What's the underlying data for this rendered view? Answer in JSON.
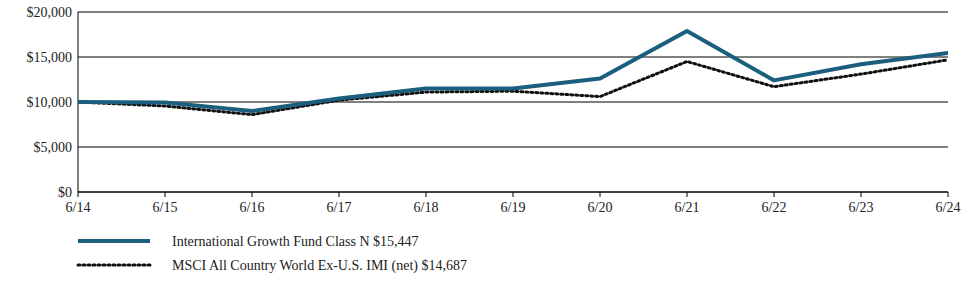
{
  "chart_data": {
    "type": "line",
    "categories": [
      "6/14",
      "6/15",
      "6/16",
      "6/17",
      "6/18",
      "6/19",
      "6/20",
      "6/21",
      "6/22",
      "6/23",
      "6/24"
    ],
    "series": [
      {
        "name": "International Growth Fund Class N $15,447",
        "color": "#1b5e7e",
        "line_style": "solid",
        "values": [
          10000,
          9950,
          9000,
          10400,
          11500,
          11500,
          12600,
          17900,
          12400,
          14200,
          15447
        ]
      },
      {
        "name": "MSCI All Country World Ex-U.S. IMI (net) $14,687",
        "color": "#111111",
        "line_style": "dotted",
        "values": [
          10000,
          9550,
          8600,
          10200,
          11100,
          11200,
          10600,
          14500,
          11700,
          13100,
          14687
        ]
      }
    ],
    "ylim": [
      0,
      20000
    ],
    "yticks": [
      {
        "value": 0,
        "label": "$0"
      },
      {
        "value": 5000,
        "label": "$5,000"
      },
      {
        "value": 10000,
        "label": "$10,000"
      },
      {
        "value": 15000,
        "label": "$15,000"
      },
      {
        "value": 20000,
        "label": "$20,000"
      }
    ],
    "grid": true,
    "legend": "bottom"
  }
}
